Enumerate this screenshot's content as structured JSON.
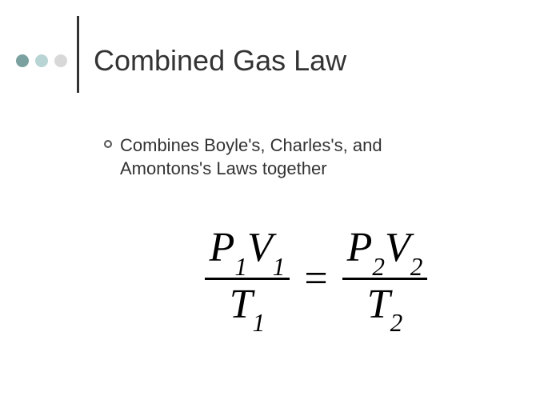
{
  "dots": {
    "colors": [
      "#7aa0a0",
      "#b8d4d4",
      "#d8d8d8"
    ]
  },
  "title": "Combined Gas Law",
  "bullet_text": "Combines Boyle's, Charles's, and Amontons's Laws together",
  "equation": {
    "left_num_html": "<i>P</i><sub>1</sub><i>V</i><sub>1</sub>",
    "left_den_html": "<i>T</i><sub>1</sub>",
    "right_num_html": "<i>P</i><sub>2</sub><i>V</i><sub>2</sub>",
    "right_den_html": "<i>T</i><sub>2</sub>",
    "equals": "="
  },
  "colors": {
    "text": "#333333",
    "background": "#ffffff",
    "vline": "#333333"
  },
  "typography": {
    "title_fontsize": 36,
    "body_fontsize": 22,
    "equation_fontsize": 52,
    "title_font": "Arial",
    "equation_font": "Times New Roman"
  }
}
